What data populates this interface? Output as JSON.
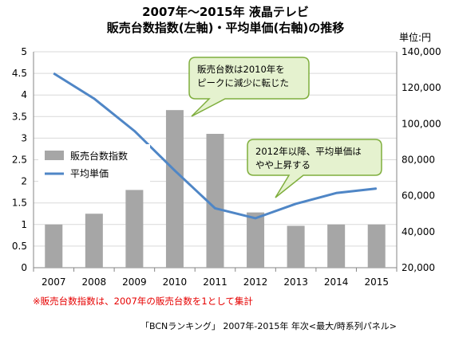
{
  "title": {
    "line1": "2007年〜2015年 液晶テレビ",
    "line2": "販売台数指数(左軸)・平均単価(右軸)の推移"
  },
  "unit_label": "単位:円",
  "note": "※販売台数指数は、2007年の販売台数を1として集計",
  "source": "「BCNランキング」 2007年-2015年 年次<最大/時系列パネル>",
  "callouts": [
    {
      "lines": [
        "販売台数は2010年を",
        "ピークに減少に転じた"
      ]
    },
    {
      "lines": [
        "2012年以降、平均単価は",
        "やや上昇する"
      ]
    }
  ],
  "colors": {
    "bar": "#a6a6a6",
    "line": "#4f86c6",
    "callout_fill": "#e5f2cf",
    "callout_stroke": "#7fae3d",
    "grid": "#d9d9d9"
  },
  "chart_data": {
    "type": "bar",
    "categories": [
      "2007",
      "2008",
      "2009",
      "2010",
      "2011",
      "2012",
      "2013",
      "2014",
      "2015"
    ],
    "series": [
      {
        "name": "販売台数指数",
        "type": "bar",
        "axis": "left",
        "values": [
          1.0,
          1.25,
          1.8,
          3.65,
          3.1,
          1.28,
          0.97,
          1.0,
          1.0
        ]
      },
      {
        "name": "平均単価",
        "type": "line",
        "axis": "right",
        "values": [
          128000,
          114000,
          96000,
          74000,
          53000,
          47500,
          55500,
          61500,
          64000
        ]
      }
    ],
    "ylim_left": [
      0,
      5
    ],
    "ylim_right": [
      20000,
      140000
    ],
    "yticks_left": [
      "0",
      "0.5",
      "1",
      "1.5",
      "2",
      "2.5",
      "3",
      "3.5",
      "4",
      "4.5",
      "5"
    ],
    "yticks_right": [
      "20,000",
      "40,000",
      "60,000",
      "80,000",
      "100,000",
      "120,000",
      "140,000"
    ],
    "grid": true,
    "legend_position": "left"
  }
}
